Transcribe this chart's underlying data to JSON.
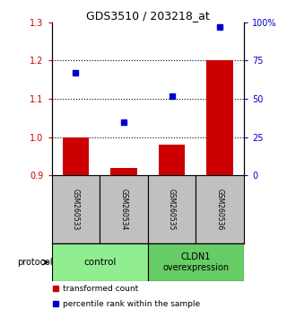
{
  "title": "GDS3510 / 203218_at",
  "samples": [
    "GSM260533",
    "GSM260534",
    "GSM260535",
    "GSM260536"
  ],
  "transformed_count": [
    1.0,
    0.92,
    0.98,
    1.2
  ],
  "percentile_rank": [
    67,
    35,
    52,
    97
  ],
  "ylim_left": [
    0.9,
    1.3
  ],
  "ylim_right": [
    0,
    100
  ],
  "yticks_left": [
    0.9,
    1.0,
    1.1,
    1.2,
    1.3
  ],
  "yticks_right": [
    0,
    25,
    50,
    75,
    100
  ],
  "ytick_labels_right": [
    "0",
    "25",
    "50",
    "75",
    "100%"
  ],
  "dotted_lines": [
    1.0,
    1.1,
    1.2
  ],
  "groups": [
    {
      "label": "control",
      "color": "#90EE90"
    },
    {
      "label": "CLDN1\noverexpression",
      "color": "#66CC66"
    }
  ],
  "bar_color": "#CC0000",
  "dot_color": "#0000CC",
  "bar_width": 0.55,
  "sample_box_color": "#C0C0C0",
  "legend_bar_label": "transformed count",
  "legend_dot_label": "percentile rank within the sample",
  "protocol_label": "protocol",
  "left_axis_color": "#CC0000",
  "right_axis_color": "#0000CC"
}
